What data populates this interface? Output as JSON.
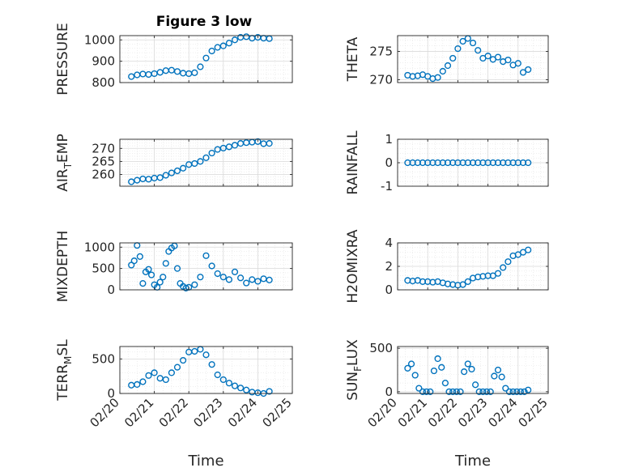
{
  "chart_data": [
    {
      "type": "scatter",
      "title": "Figure 3 low",
      "ylabel": "PRESSURE",
      "xlim": [
        "02/20",
        "02/25"
      ],
      "ylim": [
        800,
        1020
      ],
      "yticks": [
        "800",
        "900",
        "1000"
      ],
      "grid": true,
      "series": [
        {
          "x": [
            "02/20 08:00",
            "02/20 12:00",
            "02/20 16:00",
            "02/20 20:00",
            "02/21 00:00",
            "02/21 04:00",
            "02/21 08:00",
            "02/21 12:00",
            "02/21 16:00",
            "02/21 20:00",
            "02/22 00:00",
            "02/22 04:00",
            "02/22 08:00",
            "02/22 12:00",
            "02/22 16:00",
            "02/22 20:00",
            "02/23 00:00",
            "02/23 04:00",
            "02/23 08:00",
            "02/23 12:00",
            "02/23 16:00",
            "02/23 20:00",
            "02/24 00:00",
            "02/24 04:00",
            "02/24 08:00"
          ],
          "y": [
            828,
            836,
            840,
            838,
            842,
            848,
            856,
            858,
            852,
            844,
            842,
            846,
            874,
            915,
            948,
            965,
            972,
            985,
            1000,
            1012,
            1015,
            1008,
            1012,
            1008,
            1006
          ]
        }
      ]
    },
    {
      "type": "scatter",
      "title": "",
      "ylabel": "THETA",
      "xlim": [
        "02/20",
        "02/25"
      ],
      "ylim": [
        269.5,
        277.8
      ],
      "yticks": [
        "270",
        "275"
      ],
      "grid": true,
      "series": [
        {
          "x": [
            "02/20 08:00",
            "02/20 12:00",
            "02/20 16:00",
            "02/20 20:00",
            "02/21 00:00",
            "02/21 04:00",
            "02/21 08:00",
            "02/21 12:00",
            "02/21 16:00",
            "02/21 20:00",
            "02/22 00:00",
            "02/22 04:00",
            "02/22 08:00",
            "02/22 12:00",
            "02/22 16:00",
            "02/22 20:00",
            "02/23 00:00",
            "02/23 04:00",
            "02/23 08:00",
            "02/23 12:00",
            "02/23 16:00",
            "02/23 20:00",
            "02/24 00:00",
            "02/24 04:00",
            "02/24 08:00"
          ],
          "y": [
            270.8,
            270.6,
            270.7,
            270.9,
            270.6,
            270.2,
            270.4,
            271.5,
            272.5,
            273.8,
            275.5,
            276.8,
            277.3,
            276.5,
            275.2,
            273.8,
            274.2,
            273.6,
            274.0,
            273.2,
            273.5,
            272.6,
            272.9,
            271.3,
            271.8
          ]
        }
      ]
    },
    {
      "type": "scatter",
      "title": "",
      "ylabel": "AIR_TEMP",
      "xlim": [
        "02/20",
        "02/25"
      ],
      "ylim": [
        255.5,
        273.5
      ],
      "yticks": [
        "260",
        "265",
        "270"
      ],
      "grid": true,
      "series": [
        {
          "x": [
            "02/20 08:00",
            "02/20 12:00",
            "02/20 16:00",
            "02/20 20:00",
            "02/21 00:00",
            "02/21 04:00",
            "02/21 08:00",
            "02/21 12:00",
            "02/21 16:00",
            "02/21 20:00",
            "02/22 00:00",
            "02/22 04:00",
            "02/22 08:00",
            "02/22 12:00",
            "02/22 16:00",
            "02/22 20:00",
            "02/23 00:00",
            "02/23 04:00",
            "02/23 08:00",
            "02/23 12:00",
            "02/23 16:00",
            "02/23 20:00",
            "02/24 00:00",
            "02/24 04:00",
            "02/24 08:00"
          ],
          "y": [
            257.2,
            257.8,
            258.3,
            258.2,
            258.6,
            258.8,
            259.7,
            260.6,
            261.4,
            262.4,
            263.8,
            264.2,
            265.0,
            266.4,
            268.2,
            269.6,
            270.1,
            270.6,
            271.2,
            271.9,
            272.2,
            272.4,
            272.6,
            271.8,
            271.9
          ]
        }
      ]
    },
    {
      "type": "scatter",
      "title": "",
      "ylabel": "RAINFALL",
      "xlim": [
        "02/20",
        "02/25"
      ],
      "ylim": [
        -1,
        1
      ],
      "yticks": [
        "-1",
        "0",
        "1"
      ],
      "grid": true,
      "series": [
        {
          "x": [
            "02/20 08:00",
            "02/20 12:00",
            "02/20 16:00",
            "02/20 20:00",
            "02/21 00:00",
            "02/21 04:00",
            "02/21 08:00",
            "02/21 12:00",
            "02/21 16:00",
            "02/21 20:00",
            "02/22 00:00",
            "02/22 04:00",
            "02/22 08:00",
            "02/22 12:00",
            "02/22 16:00",
            "02/22 20:00",
            "02/23 00:00",
            "02/23 04:00",
            "02/23 08:00",
            "02/23 12:00",
            "02/23 16:00",
            "02/23 20:00",
            "02/24 00:00",
            "02/24 04:00",
            "02/24 08:00"
          ],
          "y": [
            0,
            0,
            0,
            0,
            0,
            0,
            0,
            0,
            0,
            0,
            0,
            0,
            0,
            0,
            0,
            0,
            0,
            0,
            0,
            0,
            0,
            0,
            0,
            0,
            0
          ]
        }
      ]
    },
    {
      "type": "scatter",
      "title": "",
      "ylabel": "MIXDEPTH",
      "xlim": [
        "02/20",
        "02/25"
      ],
      "ylim": [
        0,
        1100
      ],
      "yticks": [
        "0",
        "500",
        "1000"
      ],
      "grid": true,
      "series": [
        {
          "x": [
            "02/20 08:00",
            "02/20 10:00",
            "02/20 12:00",
            "02/20 14:00",
            "02/20 16:00",
            "02/20 18:00",
            "02/20 20:00",
            "02/20 22:00",
            "02/21 00:00",
            "02/21 02:00",
            "02/21 04:00",
            "02/21 06:00",
            "02/21 08:00",
            "02/21 10:00",
            "02/21 12:00",
            "02/21 14:00",
            "02/21 16:00",
            "02/21 18:00",
            "02/21 20:00",
            "02/21 22:00",
            "02/22 00:00",
            "02/22 04:00",
            "02/22 08:00",
            "02/22 12:00",
            "02/22 16:00",
            "02/22 20:00",
            "02/23 00:00",
            "02/23 04:00",
            "02/23 08:00",
            "02/23 12:00",
            "02/23 16:00",
            "02/23 20:00",
            "02/24 00:00",
            "02/24 04:00",
            "02/24 08:00"
          ],
          "y": [
            580,
            680,
            1040,
            780,
            150,
            420,
            480,
            350,
            120,
            60,
            180,
            300,
            620,
            900,
            980,
            1030,
            500,
            150,
            80,
            40,
            60,
            120,
            300,
            800,
            560,
            380,
            300,
            240,
            420,
            280,
            160,
            240,
            200,
            260,
            230
          ]
        }
      ]
    },
    {
      "type": "scatter",
      "title": "",
      "ylabel": "H2OMIXRA",
      "xlim": [
        "02/20",
        "02/25"
      ],
      "ylim": [
        0,
        4
      ],
      "yticks": [
        "0",
        "2",
        "4"
      ],
      "grid": true,
      "series": [
        {
          "x": [
            "02/20 08:00",
            "02/20 12:00",
            "02/20 16:00",
            "02/20 20:00",
            "02/21 00:00",
            "02/21 04:00",
            "02/21 08:00",
            "02/21 12:00",
            "02/21 16:00",
            "02/21 20:00",
            "02/22 00:00",
            "02/22 04:00",
            "02/22 08:00",
            "02/22 12:00",
            "02/22 16:00",
            "02/22 20:00",
            "02/23 00:00",
            "02/23 04:00",
            "02/23 08:00",
            "02/23 12:00",
            "02/23 16:00",
            "02/23 20:00",
            "02/24 00:00",
            "02/24 04:00",
            "02/24 08:00"
          ],
          "y": [
            0.8,
            0.75,
            0.8,
            0.7,
            0.7,
            0.65,
            0.7,
            0.6,
            0.5,
            0.45,
            0.4,
            0.45,
            0.7,
            1.0,
            1.1,
            1.15,
            1.2,
            1.2,
            1.4,
            1.9,
            2.4,
            2.9,
            3.0,
            3.2,
            3.4
          ]
        }
      ]
    },
    {
      "type": "scatter",
      "title": "",
      "ylabel": "TERR_MSL",
      "xlim": [
        "02/20",
        "02/25"
      ],
      "ylim": [
        0,
        680
      ],
      "yticks": [
        "0",
        "500"
      ],
      "xticks": [
        "02/20",
        "02/21",
        "02/22",
        "02/23",
        "02/24",
        "02/25"
      ],
      "xlabel": "Time",
      "grid": true,
      "series": [
        {
          "x": [
            "02/20 08:00",
            "02/20 12:00",
            "02/20 16:00",
            "02/20 20:00",
            "02/21 00:00",
            "02/21 04:00",
            "02/21 08:00",
            "02/21 12:00",
            "02/21 16:00",
            "02/21 20:00",
            "02/22 00:00",
            "02/22 04:00",
            "02/22 08:00",
            "02/22 12:00",
            "02/22 16:00",
            "02/22 20:00",
            "02/23 00:00",
            "02/23 04:00",
            "02/23 08:00",
            "02/23 12:00",
            "02/23 16:00",
            "02/23 20:00",
            "02/24 00:00",
            "02/24 04:00",
            "02/24 08:00"
          ],
          "y": [
            120,
            130,
            170,
            260,
            300,
            220,
            200,
            300,
            380,
            480,
            600,
            610,
            640,
            560,
            420,
            270,
            200,
            150,
            110,
            80,
            50,
            20,
            10,
            0,
            30
          ]
        }
      ]
    },
    {
      "type": "scatter",
      "title": "",
      "ylabel": "SUN_FLUX",
      "xlim": [
        "02/20",
        "02/25"
      ],
      "ylim": [
        -20,
        520
      ],
      "yticks": [
        "0",
        "500"
      ],
      "xticks": [
        "02/20",
        "02/21",
        "02/22",
        "02/23",
        "02/24",
        "02/25"
      ],
      "xlabel": "Time",
      "grid": true,
      "series": [
        {
          "x": [
            "02/20 08:00",
            "02/20 11:00",
            "02/20 14:00",
            "02/20 17:00",
            "02/20 20:00",
            "02/20 23:00",
            "02/21 02:00",
            "02/21 05:00",
            "02/21 08:00",
            "02/21 11:00",
            "02/21 14:00",
            "02/21 17:00",
            "02/21 20:00",
            "02/21 23:00",
            "02/22 02:00",
            "02/22 05:00",
            "02/22 08:00",
            "02/22 11:00",
            "02/22 14:00",
            "02/22 17:00",
            "02/22 20:00",
            "02/22 23:00",
            "02/23 02:00",
            "02/23 05:00",
            "02/23 08:00",
            "02/23 11:00",
            "02/23 14:00",
            "02/23 17:00",
            "02/23 20:00",
            "02/23 23:00",
            "02/24 02:00",
            "02/24 05:00",
            "02/24 08:00"
          ],
          "y": [
            270,
            320,
            190,
            40,
            0,
            0,
            0,
            240,
            380,
            280,
            100,
            0,
            0,
            0,
            0,
            230,
            320,
            260,
            80,
            0,
            0,
            0,
            0,
            180,
            250,
            170,
            40,
            0,
            0,
            0,
            0,
            0,
            20
          ]
        }
      ]
    }
  ]
}
